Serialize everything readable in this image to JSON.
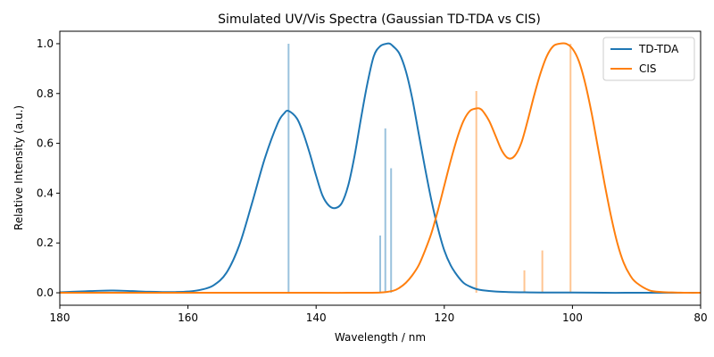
{
  "chart_data": {
    "type": "line",
    "title": "Simulated UV/Vis Spectra (Gaussian TD-TDA vs CIS)",
    "xlabel": "Wavelength / nm",
    "ylabel": "Relative Intensity (a.u.)",
    "xlim": [
      180,
      80
    ],
    "ylim": [
      -0.05,
      1.05
    ],
    "x_reversed": true,
    "x_ticks": [
      180,
      160,
      140,
      120,
      100,
      80
    ],
    "y_ticks": [
      "0.0",
      "0.2",
      "0.4",
      "0.6",
      "0.8",
      "1.0"
    ],
    "legend_position": "top-right",
    "grid": false,
    "series": [
      {
        "name": "TD-TDA",
        "color": "#1f77b4",
        "x": [
          180,
          178,
          176,
          174,
          172,
          170,
          168,
          166,
          164,
          162,
          160,
          158,
          156,
          154,
          152,
          150,
          148,
          146,
          145,
          144.3,
          143,
          142,
          141,
          140,
          139,
          138,
          137,
          136,
          135,
          134,
          133,
          132,
          131,
          130,
          129,
          128.5,
          128,
          127,
          126,
          125,
          124,
          123,
          122,
          121,
          120,
          119,
          118,
          117,
          116,
          115,
          114,
          112,
          110,
          108,
          105,
          100,
          95,
          90,
          85,
          80
        ],
        "y": [
          0.002,
          0.004,
          0.006,
          0.008,
          0.009,
          0.008,
          0.006,
          0.004,
          0.003,
          0.003,
          0.005,
          0.012,
          0.03,
          0.08,
          0.19,
          0.36,
          0.54,
          0.68,
          0.72,
          0.73,
          0.7,
          0.64,
          0.56,
          0.47,
          0.39,
          0.35,
          0.34,
          0.36,
          0.43,
          0.55,
          0.7,
          0.84,
          0.95,
          0.99,
          1.0,
          1.0,
          0.99,
          0.96,
          0.89,
          0.78,
          0.64,
          0.5,
          0.37,
          0.26,
          0.17,
          0.11,
          0.07,
          0.04,
          0.025,
          0.015,
          0.01,
          0.005,
          0.003,
          0.002,
          0.001,
          0.001,
          0.0,
          0.0,
          0.0,
          0.0
        ]
      },
      {
        "name": "CIS",
        "color": "#ff7f0e",
        "x": [
          180,
          170,
          160,
          150,
          140,
          135,
          130,
          128,
          127,
          126,
          125,
          124,
          123,
          122,
          121,
          120,
          119,
          118,
          117,
          116,
          115,
          114.5,
          114,
          113,
          112,
          111,
          110,
          109,
          108,
          107,
          106,
          105,
          104,
          103,
          102,
          101,
          100,
          99,
          98,
          97,
          96,
          95,
          94,
          93,
          92,
          91,
          90,
          88,
          86,
          84,
          82,
          80
        ],
        "y": [
          0.0,
          0.0,
          0.0,
          0.0,
          0.0,
          0.0,
          0.001,
          0.008,
          0.02,
          0.04,
          0.07,
          0.11,
          0.17,
          0.24,
          0.33,
          0.43,
          0.53,
          0.62,
          0.69,
          0.73,
          0.74,
          0.74,
          0.73,
          0.69,
          0.63,
          0.57,
          0.54,
          0.55,
          0.6,
          0.69,
          0.79,
          0.88,
          0.95,
          0.99,
          1.0,
          1.0,
          0.98,
          0.93,
          0.84,
          0.72,
          0.58,
          0.44,
          0.31,
          0.2,
          0.12,
          0.07,
          0.04,
          0.01,
          0.003,
          0.001,
          0.0,
          0.0
        ]
      }
    ],
    "sticks": [
      {
        "series": "TD-TDA",
        "color": "#1f77b4",
        "x": [
          144.3,
          130,
          129.2,
          128.3
        ],
        "y": [
          1.0,
          0.23,
          0.66,
          0.5
        ]
      },
      {
        "series": "CIS",
        "color": "#ff7f0e",
        "x": [
          115,
          107.5,
          104.7,
          100.3
        ],
        "y": [
          0.81,
          0.09,
          0.17,
          1.0
        ]
      }
    ]
  }
}
